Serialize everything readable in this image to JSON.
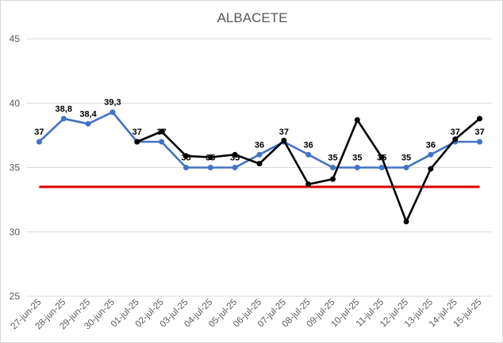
{
  "chart_data": {
    "type": "line",
    "title": "ALBACETE",
    "categories": [
      "27-jun-25",
      "28-jun-25",
      "29-jun-25",
      "30-jun-25",
      "01-jul-25",
      "02-jul-25",
      "03-jul-25",
      "04-jul-25",
      "05-jul-25",
      "06-jul-25",
      "07-jul-25",
      "08-jul-25",
      "09-jul-25",
      "10-jul-25",
      "11-jul-25",
      "12-jul-25",
      "13-jul-25",
      "14-jul-25",
      "15-jul-25"
    ],
    "ylim": [
      25,
      45
    ],
    "yticks": [
      25,
      30,
      35,
      40,
      45
    ],
    "grid": true,
    "legend": "none",
    "series": [
      {
        "color": "#4472c4",
        "values": [
          37,
          38.8,
          38.4,
          39.3,
          37,
          37,
          35,
          35,
          35,
          36,
          37,
          36,
          35,
          35,
          35,
          35,
          36,
          37,
          37
        ],
        "labels": [
          "37",
          "38,8",
          "38,4",
          "39,3",
          "37",
          "37",
          "35",
          "35",
          "35",
          "36",
          "37",
          "36",
          "35",
          "35",
          "35",
          "35",
          "36",
          "37",
          "37"
        ]
      },
      {
        "color": "#000000",
        "values": [
          null,
          null,
          null,
          null,
          37,
          37.8,
          35.9,
          35.8,
          36,
          35.3,
          37.1,
          33.7,
          34.1,
          38.7,
          35.8,
          30.8,
          34.9,
          37.2,
          38.8
        ]
      },
      {
        "color": "#e00000",
        "type": "threshold",
        "value": 33.5
      }
    ]
  }
}
